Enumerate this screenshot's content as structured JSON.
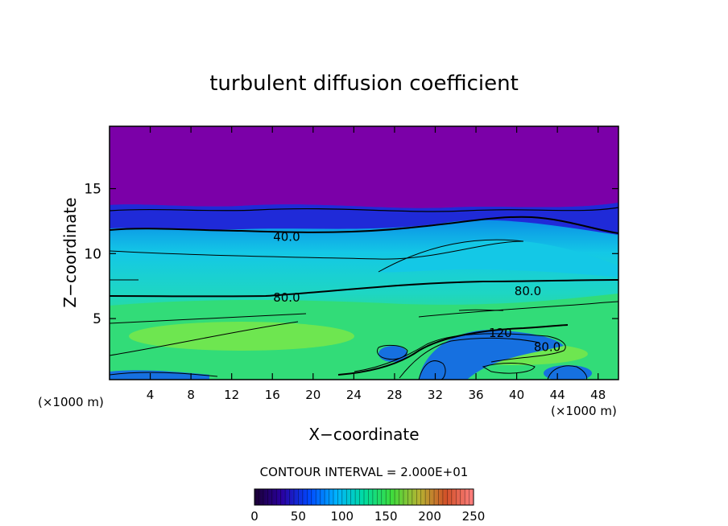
{
  "chart_data": {
    "type": "heatmap",
    "title": "turbulent diffusion coefficient",
    "xlabel": "X−coordinate",
    "ylabel": "Z−coordinate",
    "x_unit_left": "(×1000 m)",
    "x_unit_right": "(×1000 m)",
    "xlim": [
      0,
      50
    ],
    "ylim": [
      0.3,
      19.8
    ],
    "x_ticks": [
      4,
      8,
      12,
      16,
      20,
      24,
      28,
      32,
      36,
      40,
      44,
      48
    ],
    "y_ticks": [
      5,
      10,
      15
    ],
    "grid": false,
    "contour_interval_text": "CONTOUR INTERVAL = 2.000E+01",
    "contour_interval": 20,
    "contour_labels": [
      {
        "text": "40.0",
        "x": 17.4,
        "z": 11.3
      },
      {
        "text": "80.0",
        "x": 17.4,
        "z": 6.6
      },
      {
        "text": "80.0",
        "x": 41.1,
        "z": 7.1
      },
      {
        "text": "120",
        "x": 38.4,
        "z": 3.9
      },
      {
        "text": "80.0",
        "x": 43.0,
        "z": 2.8
      }
    ],
    "colorbar": {
      "min": 0,
      "max": 250,
      "ticks": [
        0,
        50,
        100,
        150,
        200,
        250
      ],
      "colors": [
        "#1a0033",
        "#2a00a0",
        "#0048ff",
        "#00b4ff",
        "#00dca0",
        "#3cdc3c",
        "#b4b432",
        "#d25028",
        "#ff8080"
      ]
    },
    "field_colors": {
      "top": "#7b00a8",
      "band_upper": "#1f2ad8",
      "mid_blue": "#0a8ce6",
      "cyan": "#14c8e6",
      "aqua": "#1ed6c3",
      "green": "#32dc78",
      "lime": "#6ee650",
      "low_blue": "#1670e0"
    }
  }
}
